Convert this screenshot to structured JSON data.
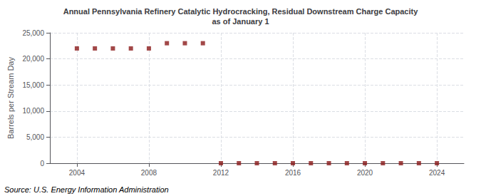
{
  "chart_data": {
    "type": "scatter",
    "title": "Annual Pennsylvania Refinery Catalytic Hydrocracking, Residual Downstream Charge Capacity\nas of January 1",
    "ylabel": "Barrels per Stream Day",
    "annotations": [
      "Source: U.S. Energy Information Administration"
    ],
    "x": [
      2004,
      2005,
      2006,
      2007,
      2008,
      2009,
      2010,
      2011,
      2012,
      2013,
      2014,
      2015,
      2016,
      2017,
      2018,
      2019,
      2020,
      2021,
      2022,
      2023,
      2024
    ],
    "values": [
      22000,
      22000,
      22000,
      22000,
      22000,
      23000,
      23000,
      23000,
      0,
      0,
      0,
      0,
      0,
      0,
      0,
      0,
      0,
      0,
      0,
      0,
      0
    ],
    "color": "#8b1a1a",
    "marker": "square",
    "xlim": [
      2002.5,
      2025.5
    ],
    "xticks": [
      2004,
      2008,
      2012,
      2016,
      2020,
      2024
    ],
    "ylim": [
      0,
      25000
    ],
    "yticks": [
      0,
      {
        "value": 5000,
        "label": "5,000"
      },
      {
        "value": 10000,
        "label": "10,000"
      },
      {
        "value": 15000,
        "label": "15,000"
      },
      {
        "value": 20000,
        "label": "20,000"
      },
      {
        "value": 25000,
        "label": "25,000"
      }
    ],
    "grid": true
  }
}
